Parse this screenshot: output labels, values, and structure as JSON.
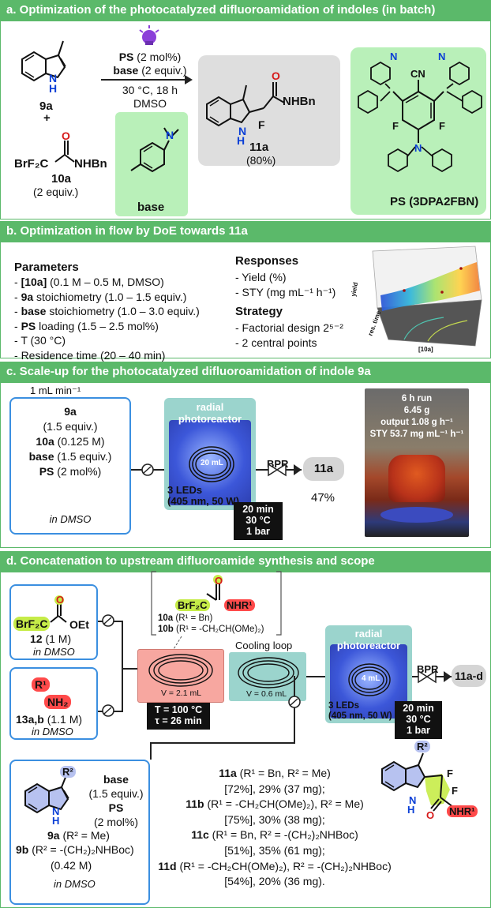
{
  "section_a": {
    "title": "a. Optimization of the photocatalyzed difluoroamidation of indoles (in batch)",
    "substrate_9a": "9a",
    "plus": "+",
    "reagent_label": "10a",
    "reagent_equiv": "(2 equiv.)",
    "reagent_lhs": "BrF₂C",
    "reagent_rhs": "NHBn",
    "cond_ps": "PS",
    "cond_ps_amt": "(2 mol%)",
    "cond_base": "base",
    "cond_base_amt": "(2 equiv.)",
    "cond_temp": "30 °C, 18 h",
    "cond_solvent": "DMSO",
    "base_label": "base",
    "product_label": "11a",
    "product_yield": "(80%)",
    "product_nhbn": "NHBn",
    "ps_label": "PS",
    "ps_name": "(3DPA2FBN)",
    "ps_cn": "CN",
    "ps_f": "F",
    "product_f": "F"
  },
  "section_b": {
    "title": "b. Optimization in flow by DoE towards 11a",
    "params_title": "Parameters",
    "params": [
      {
        "bold": "[10a]",
        "rest": " (0.1 M – 0.5 M, DMSO)",
        "prefix": "- "
      },
      {
        "bold": "9a",
        "rest": " stoichiometry (1.0 – 1.5 equiv.)",
        "prefix": "- "
      },
      {
        "bold": "base",
        "rest": " stoichiometry (1.0 – 3.0 equiv.)",
        "prefix": "- "
      },
      {
        "bold": "PS",
        "rest": " loading (1.5 – 2.5 mol%)",
        "prefix": "- "
      },
      {
        "bold": "",
        "rest": "T (30 °C)",
        "prefix": "- "
      },
      {
        "bold": "",
        "rest": "Residence time (20 – 40 min)",
        "prefix": "- "
      }
    ],
    "responses_title": "Responses",
    "responses": [
      "- Yield (%)",
      "- STY (mg mL⁻¹ h⁻¹)"
    ],
    "strategy_title": "Strategy",
    "strategy": [
      "- Factorial design 2⁵⁻²",
      "- 2 central points"
    ],
    "plot_axis_y": "yield",
    "plot_axis_rt": "res. time",
    "plot_axis_x": "[10a]"
  },
  "section_c": {
    "title": "c. Scale-up for the photocatalyzed difluoroamidation of indole 9a",
    "flow_rate": "1 mL min⁻¹",
    "feed": [
      {
        "b": "9a",
        "r": ""
      },
      {
        "b": "",
        "r": "(1.5 equiv.)"
      },
      {
        "b": "10a",
        "r": " (0.125 M)"
      },
      {
        "b": "base",
        "r": " (1.5 equiv.)"
      },
      {
        "b": "PS",
        "r": " (2 mol%)"
      }
    ],
    "feed_solvent": "in DMSO",
    "reactor_title": "radial photoreactor",
    "reactor_volume": "20 mL",
    "leds": "3 LEDs",
    "leds_spec": "(405 nm, 50 W)",
    "cond": [
      "20 min",
      "30 °C",
      "1 bar"
    ],
    "bpr": "BPR",
    "product": "11a",
    "yield": "47%",
    "photo_lines": [
      "6 h run",
      "6.45 g",
      "output 1.08 g h⁻¹",
      "STY 53.7 mg mL⁻¹ h⁻¹"
    ]
  },
  "section_d": {
    "title": "d. Concatenation to upstream difluoroamide synthesis and scope",
    "ester_lhs": "BrF₂C",
    "ester_rhs": "OEt",
    "ester_label": "12",
    "ester_conc": " (1 M)",
    "ester_solvent": "in DMSO",
    "amine_r": "R¹",
    "amine_nh2": "NH₂",
    "amine_label": "13a,b",
    "amine_conc": " (1.1 M)",
    "amine_solvent": "in DMSO",
    "bracket_lhs": "BrF₂C",
    "bracket_rhs": "NHR¹",
    "bracket_10a_b": "10a",
    "bracket_10a_r": " (R¹ = Bn)",
    "bracket_10b_b": "10b",
    "bracket_10b_r": " (R¹ = -CH₂CH(OMe)₂)",
    "cooling_label": "Cooling loop",
    "heat_volume": "V = 2.1 mL",
    "cool_volume": "V = 0.6 mL",
    "heat_cond": [
      "T = 100 °C",
      "τ = 26 min"
    ],
    "reactor_title": "radial photoreactor",
    "reactor_volume": "4 mL",
    "leds": "3 LEDs",
    "leds_spec": "(405 nm, 50 W)",
    "cond": [
      "20 min",
      "30 °C",
      "1 bar"
    ],
    "bpr": "BPR",
    "product": "11a-d",
    "indole_r2": "R²",
    "indole_9a_b": "9a",
    "indole_9a_r": " (R² = Me)",
    "indole_9b_b": "9b",
    "indole_9b_r": " (R² = -(CH₂)₂NHBoc)",
    "indole_conc": "(0.42 M)",
    "indole_solvent": "in DMSO",
    "base_lines": [
      "base",
      "(1.5 equiv.)",
      "PS",
      "(2 mol%)"
    ],
    "scope": [
      {
        "b": "11a",
        "r": " (R¹ = Bn, R² = Me)"
      },
      {
        "b": "",
        "r": "[72%], 29% (37 mg);"
      },
      {
        "b": "11b",
        "r": " (R¹ = -CH₂CH(OMe)₂), R² = Me)"
      },
      {
        "b": "",
        "r": "[75%], 30% (38 mg);"
      },
      {
        "b": "11c",
        "r": " (R¹ = Bn, R² = -(CH₂)₂NHBoc)"
      },
      {
        "b": "",
        "r": "[51%], 35% (61 mg);"
      },
      {
        "b": "11d",
        "r": " (R¹ = -CH₂CH(OMe)₂), R² = -(CH₂)₂NHBoc)"
      },
      {
        "b": "",
        "r": "[54%], 20% (36 mg)."
      }
    ],
    "prod_r2": "R²",
    "prod_f": "F",
    "prod_nhr": "NHR¹"
  }
}
